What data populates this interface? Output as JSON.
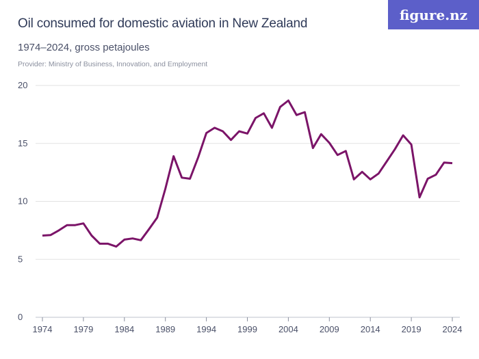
{
  "title": "Oil consumed for domestic aviation in New Zealand",
  "subtitle": "1974–2024, gross petajoules",
  "provider": "Provider: Ministry of Business, Innovation, and Employment",
  "logo": "figure.nz",
  "colors": {
    "line": "#7b1468",
    "logo_bg": "#5c5fc9",
    "grid": "#e2e2e2"
  },
  "chart_data": {
    "type": "line",
    "title": "Oil consumed for domestic aviation in New Zealand",
    "subtitle": "1974–2024, gross petajoules",
    "ylim": [
      0,
      20
    ],
    "xlim": [
      1974,
      2024
    ],
    "grid": true,
    "yticks": [
      0,
      5,
      10,
      15,
      20
    ],
    "xticks": [
      1974,
      1979,
      1984,
      1989,
      1994,
      1999,
      2004,
      2009,
      2014,
      2019,
      2024
    ],
    "x": [
      1974,
      1975,
      1976,
      1977,
      1978,
      1979,
      1980,
      1981,
      1982,
      1983,
      1984,
      1985,
      1986,
      1987,
      1988,
      1989,
      1990,
      1991,
      1992,
      1993,
      1994,
      1995,
      1996,
      1997,
      1998,
      1999,
      2000,
      2001,
      2002,
      2003,
      2004,
      2005,
      2006,
      2007,
      2008,
      2009,
      2010,
      2011,
      2012,
      2013,
      2014,
      2015,
      2016,
      2017,
      2018,
      2019,
      2020,
      2021,
      2022,
      2023,
      2024
    ],
    "values": [
      7.05,
      7.1,
      7.5,
      7.95,
      7.95,
      8.1,
      7.05,
      6.35,
      6.35,
      6.1,
      6.7,
      6.8,
      6.65,
      7.6,
      8.6,
      11.1,
      13.9,
      12.05,
      11.95,
      13.8,
      15.9,
      16.35,
      16.05,
      15.3,
      16.05,
      15.85,
      17.2,
      17.6,
      16.35,
      18.15,
      18.7,
      17.45,
      17.7,
      14.6,
      15.8,
      15.05,
      14.0,
      14.35,
      11.9,
      12.55,
      11.9,
      12.4,
      13.45,
      14.5,
      15.7,
      14.9,
      10.35,
      11.95,
      12.3,
      13.35,
      13.3
    ]
  }
}
